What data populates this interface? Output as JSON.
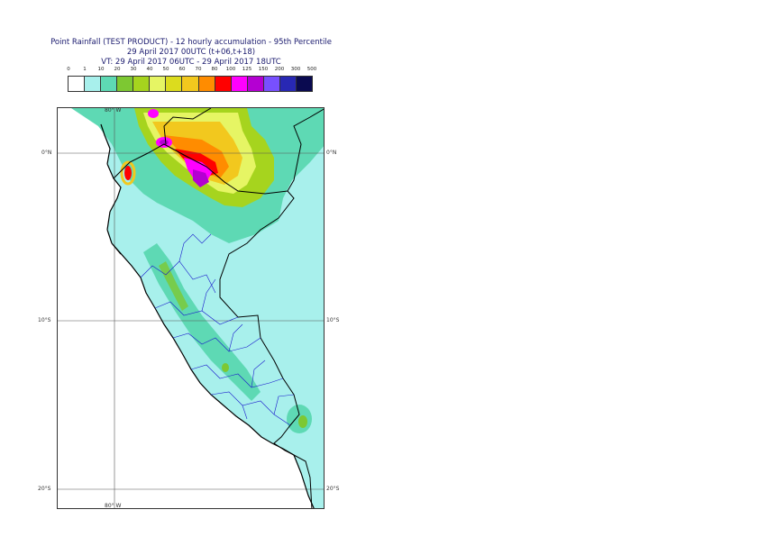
{
  "title": {
    "line1": "Point Rainfall (TEST PRODUCT) - 12 hourly accumulation - 95th Percentile",
    "line2": "29 April 2017 00UTC (t+06,t+18)",
    "line3": "VT: 29 April 2017 06UTC - 29 April 2017 18UTC"
  },
  "legend": {
    "levels": [
      "0",
      "1",
      "10",
      "20",
      "30",
      "40",
      "50",
      "60",
      "70",
      "80",
      "100",
      "125",
      "150",
      "200",
      "300",
      "500"
    ],
    "colors": [
      "#ffffff",
      "#a8f0ec",
      "#5ed9b4",
      "#7dc832",
      "#a6d41e",
      "#e6f564",
      "#dcdc1e",
      "#f2c81e",
      "#ff8c00",
      "#ff0000",
      "#ff00ff",
      "#b400d2",
      "#7850ff",
      "#2828b4",
      "#0a0a50"
    ]
  },
  "map": {
    "top_lon_label": "80° W",
    "bottom_lon_label": "80° W",
    "lat_labels": [
      "0°N",
      "10°S",
      "20°S"
    ]
  }
}
